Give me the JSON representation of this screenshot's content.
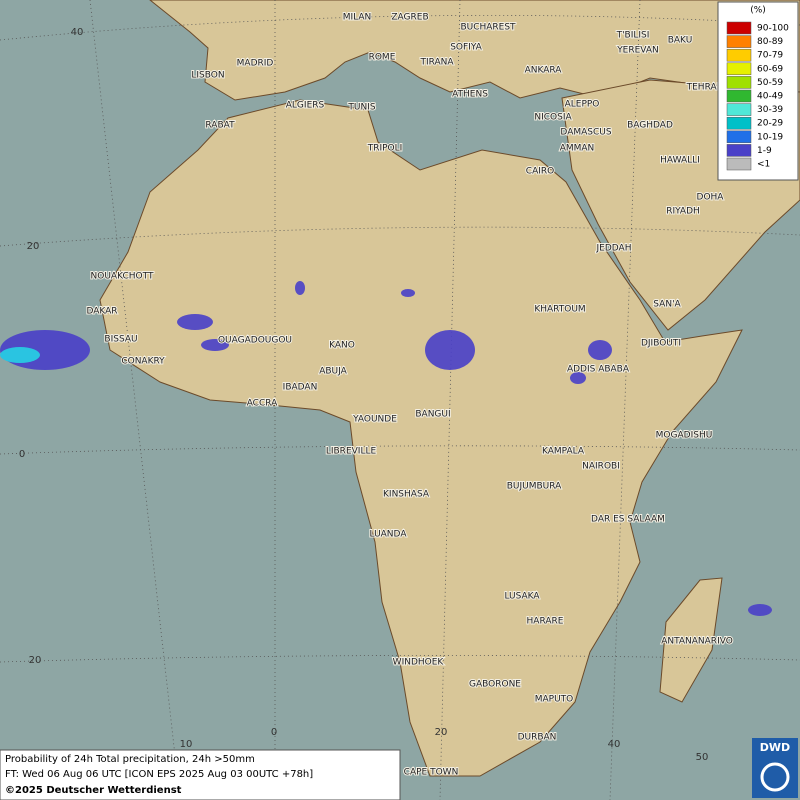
{
  "cities": [
    "MILAN",
    "ZAGREB",
    "BUCHAREST",
    "T'BILISI",
    "BAKU",
    "MADRID",
    "ROME",
    "SOFIYA",
    "YEREVAN",
    "LISBON",
    "TIRANA",
    "ANKARA",
    "TEHRAN",
    "ALGIERS",
    "TUNIS",
    "ATHENS",
    "ALEPPO",
    "RABAT",
    "NICOSIA",
    "BAGHDAD",
    "TRIPOLI",
    "DAMASCUS",
    "AMMAN",
    "CAIRO",
    "HAWALLI",
    "DOHA",
    "RIYADH",
    "JEDDAH",
    "NOUAKCHOTT",
    "KHARTOUM",
    "SAN'A",
    "DAKAR",
    "BISSAU",
    "OUAGADOUGOU",
    "KANO",
    "DJIBOUTI",
    "CONAKRY",
    "ABUJA",
    "ADDIS ABABA",
    "IBADAN",
    "ACCRA",
    "YAOUNDE",
    "BANGUI",
    "MOGADISHU",
    "LIBREVILLE",
    "KAMPALA",
    "NAIROBI",
    "KINSHASA",
    "BUJUMBURA",
    "DAR ES SALAAM",
    "LUANDA",
    "LUSAKA",
    "HARARE",
    "ANTANANARIVO",
    "WINDHOEK",
    "GABORONE",
    "MAPUTO",
    "DURBAN",
    "CAPE TOWN"
  ],
  "grid_labels": [
    "40",
    "20",
    "0",
    "20",
    "10",
    "0",
    "20",
    "40",
    "50"
  ],
  "legend": {
    "title": "(%)",
    "items": [
      {
        "label": "90-100",
        "color": "#cc0000"
      },
      {
        "label": "80-89",
        "color": "#ff8000"
      },
      {
        "label": "70-79",
        "color": "#ffcc00"
      },
      {
        "label": "60-69",
        "color": "#e6f000"
      },
      {
        "label": "50-59",
        "color": "#a0e000"
      },
      {
        "label": "40-49",
        "color": "#30b830"
      },
      {
        "label": "30-39",
        "color": "#50e8d8"
      },
      {
        "label": "20-29",
        "color": "#00c0c8"
      },
      {
        "label": "10-19",
        "color": "#2070e8"
      },
      {
        "label": "1-9",
        "color": "#4a40c8"
      },
      {
        "label": "<1",
        "color": "#bbbbbb"
      }
    ]
  },
  "footer": {
    "lines": [
      "Probability of 24h Total precipitation, 24h >50mm",
      "FT: Wed 06 Aug 06 UTC [ICON EPS 2025 Aug 03 00UTC +78h]"
    ],
    "copyright": "©2025 Deutscher Wetterdienst"
  },
  "logo": "DWD"
}
